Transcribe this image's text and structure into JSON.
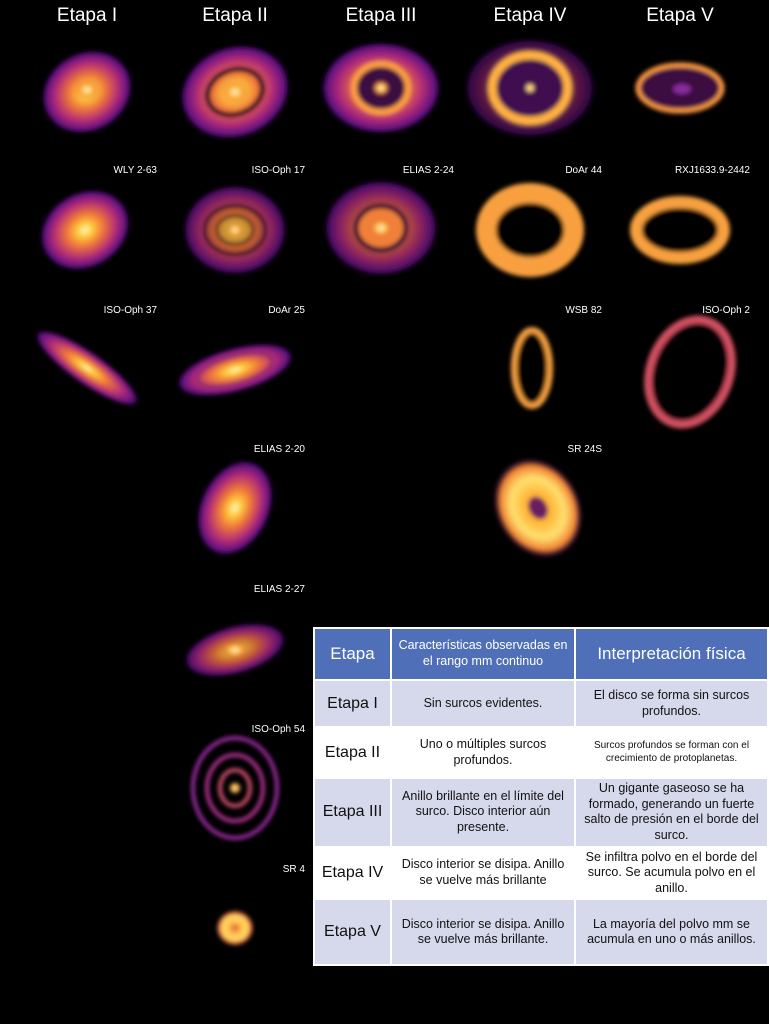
{
  "columns": [
    "Etapa I",
    "Etapa II",
    "Etapa III",
    "Etapa IV",
    "Etapa V"
  ],
  "disks": [
    {
      "label": "WLY 2-63"
    },
    {
      "label": "ISO-Oph 17"
    },
    {
      "label": "ELIAS 2-24"
    },
    {
      "label": "DoAr 44"
    },
    {
      "label": "RXJ1633.9-2442"
    },
    {
      "label": "ISO-Oph 37"
    },
    {
      "label": "DoAr 25"
    },
    {
      "label": "WSB 82"
    },
    {
      "label": "ISO-Oph 2"
    },
    {
      "label": "ELIAS 2-20"
    },
    {
      "label": "SR 24S"
    },
    {
      "label": "ELIAS 2-27"
    },
    {
      "label": "ISO-Oph 54"
    },
    {
      "label": "SR 4"
    }
  ],
  "table": {
    "header": [
      "Etapa",
      "Características observadas en el rango mm continuo",
      "Interpretación física"
    ],
    "rows": [
      [
        "Etapa I",
        "Sin surcos evidentes.",
        "El disco se forma sin surcos profundos."
      ],
      [
        "Etapa II",
        "Uno o múltiples surcos profundos.",
        "Surcos profundos se forman con el crecimiento de protoplanetas."
      ],
      [
        "Etapa III",
        "Anillo brillante en el límite del surco. Disco interior aún presente.",
        "Un gigante gaseoso se ha formado, generando un fuerte salto de presión en el borde del surco."
      ],
      [
        "Etapa IV",
        "Disco interior se disipa. Anillo se vuelve más brillante",
        "Se infiltra polvo en el borde del surco. Se acumula polvo en el anillo."
      ],
      [
        "Etapa V",
        "Disco interior se disipa. Anillo se vuelve más brillante.",
        "La mayoría del polvo mm se acumula en uno o más anillos."
      ]
    ]
  }
}
